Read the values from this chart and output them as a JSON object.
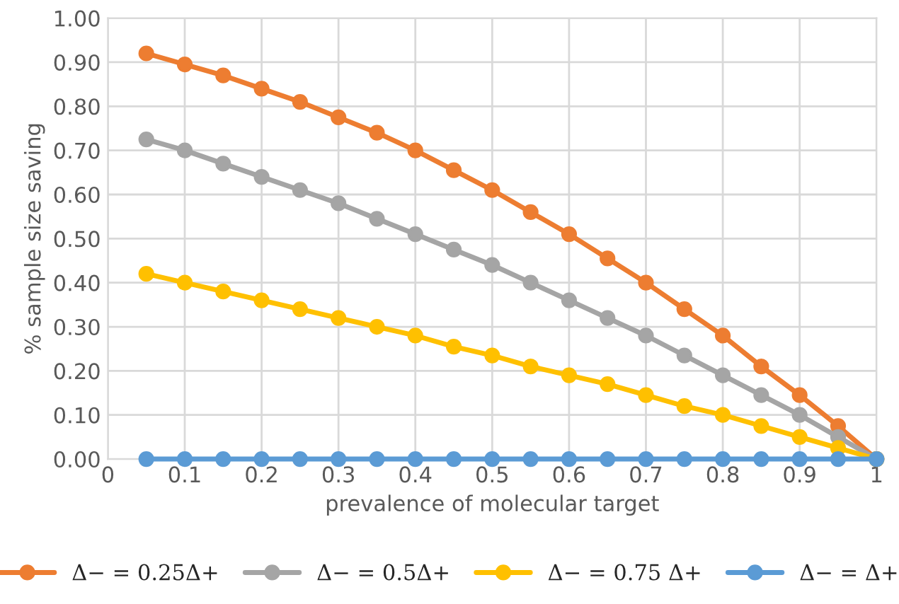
{
  "chart_data": {
    "type": "line",
    "xlabel": "prevalence of molecular target",
    "ylabel": "% sample size saving",
    "x": [
      0.05,
      0.1,
      0.15,
      0.2,
      0.25,
      0.3,
      0.35,
      0.4,
      0.45,
      0.5,
      0.55,
      0.6,
      0.65,
      0.7,
      0.75,
      0.8,
      0.85,
      0.9,
      0.95,
      1.0
    ],
    "series": [
      {
        "name": "Δ− = 0.25Δ+",
        "color": "#ed7d31",
        "values": [
          0.92,
          0.895,
          0.87,
          0.84,
          0.81,
          0.775,
          0.74,
          0.7,
          0.655,
          0.61,
          0.56,
          0.51,
          0.455,
          0.4,
          0.34,
          0.28,
          0.21,
          0.145,
          0.075,
          0.0
        ]
      },
      {
        "name": "Δ− = 0.5Δ+",
        "color": "#a5a5a5",
        "values": [
          0.725,
          0.7,
          0.67,
          0.64,
          0.61,
          0.58,
          0.545,
          0.51,
          0.475,
          0.44,
          0.4,
          0.36,
          0.32,
          0.28,
          0.235,
          0.19,
          0.145,
          0.1,
          0.05,
          0.0
        ]
      },
      {
        "name": "Δ− = 0.75 Δ+",
        "color": "#ffc000",
        "values": [
          0.42,
          0.4,
          0.38,
          0.36,
          0.34,
          0.32,
          0.3,
          0.28,
          0.255,
          0.235,
          0.21,
          0.19,
          0.17,
          0.145,
          0.12,
          0.1,
          0.075,
          0.05,
          0.025,
          0.0
        ]
      },
      {
        "name": "Δ− = Δ+",
        "color": "#5b9bd5",
        "values": [
          0,
          0,
          0,
          0,
          0,
          0,
          0,
          0,
          0,
          0,
          0,
          0,
          0,
          0,
          0,
          0,
          0,
          0,
          0,
          0
        ]
      }
    ],
    "xlim": [
      0,
      1
    ],
    "xticks": [
      0,
      0.1,
      0.2,
      0.3,
      0.4,
      0.5,
      0.6,
      0.7,
      0.8,
      0.9,
      1
    ],
    "ylim": [
      0,
      1
    ],
    "yticks": [
      {
        "value": 0,
        "label": "0.00"
      },
      {
        "value": 0.1,
        "label": "0.10"
      },
      {
        "value": 0.2,
        "label": "0.20"
      },
      {
        "value": 0.3,
        "label": "0.30"
      },
      {
        "value": 0.4,
        "label": "0.40"
      },
      {
        "value": 0.5,
        "label": "0.50"
      },
      {
        "value": 0.6,
        "label": "0.60"
      },
      {
        "value": 0.7,
        "label": "0.70"
      },
      {
        "value": 0.8,
        "label": "0.80"
      },
      {
        "value": 0.9,
        "label": "0.90"
      },
      {
        "value": 1,
        "label": "1.00"
      }
    ],
    "grid": true,
    "legend": "bottom",
    "marker": "circle",
    "line_style": "solid"
  }
}
